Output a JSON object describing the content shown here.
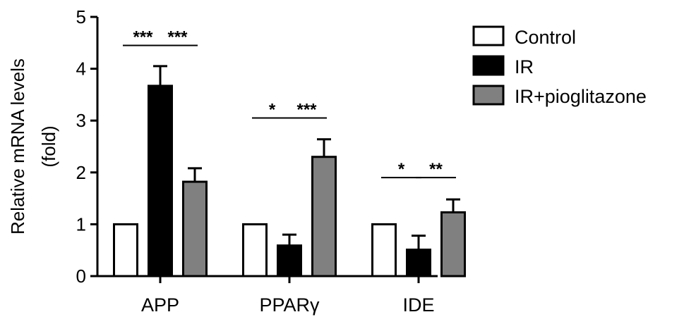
{
  "chart_data": {
    "type": "bar",
    "ylabel_line1": "Relative mRNA levels",
    "ylabel_line2": "(fold)",
    "ylim": [
      0,
      5
    ],
    "yticks": [
      "0",
      "1",
      "2",
      "3",
      "4",
      "5"
    ],
    "categories": [
      "APP",
      "PPARγ",
      "IDE"
    ],
    "series": [
      {
        "name": "Control",
        "values": [
          1.0,
          1.0,
          1.0
        ],
        "errors": [
          0,
          0,
          0
        ],
        "color": "#ffffff"
      },
      {
        "name": "IR",
        "values": [
          3.67,
          0.59,
          0.51
        ],
        "errors": [
          0.38,
          0.21,
          0.27
        ],
        "color": "#000000"
      },
      {
        "name": "IR+pioglitazone",
        "values": [
          1.82,
          2.3,
          1.23
        ],
        "errors": [
          0.26,
          0.34,
          0.25
        ],
        "color": "#808080"
      }
    ],
    "significance": [
      {
        "category": 0,
        "from": 0,
        "to": 1,
        "label": "***",
        "level": 4.45
      },
      {
        "category": 0,
        "from": 1,
        "to": 2,
        "label": "***",
        "level": 4.45
      },
      {
        "category": 1,
        "from": 0,
        "to": 1,
        "label": "*",
        "level": 3.05
      },
      {
        "category": 1,
        "from": 1,
        "to": 2,
        "label": "***",
        "level": 3.05
      },
      {
        "category": 2,
        "from": 0,
        "to": 1,
        "label": "*",
        "level": 1.9
      },
      {
        "category": 2,
        "from": 1,
        "to": 2,
        "label": "**",
        "level": 1.9
      }
    ],
    "legend_position": "top-right"
  }
}
